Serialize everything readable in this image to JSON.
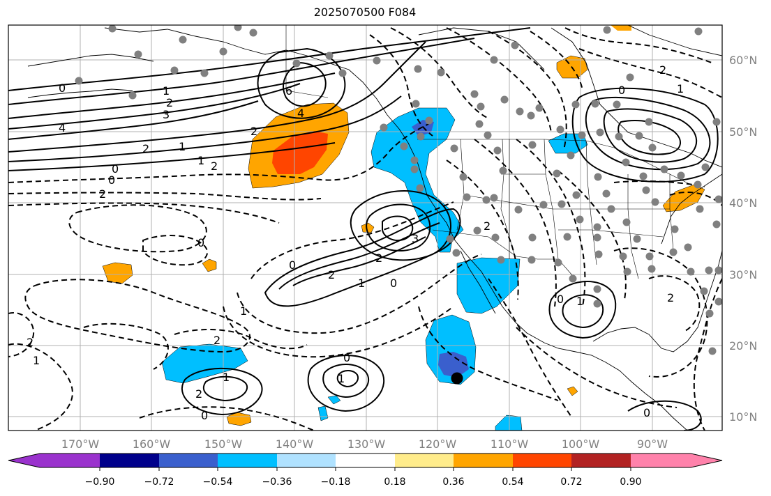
{
  "title": "2025070500 F084",
  "map": {
    "lat_labels": [
      "60°N",
      "50°N",
      "40°N",
      "30°N",
      "20°N",
      "10°N"
    ],
    "lon_labels": [
      "170°W",
      "160°W",
      "150°W",
      "140°W",
      "130°W",
      "120°W",
      "110°W",
      "100°W",
      "90°W"
    ],
    "contour_labels": [
      "0",
      "1",
      "2",
      "3",
      "4",
      "6",
      "2",
      "1",
      "0",
      "2",
      "2",
      "1",
      "0",
      "2",
      "3",
      "4",
      "2",
      "1",
      "0",
      "2",
      "0",
      "1",
      "2",
      "1",
      "0",
      "2",
      "0",
      "1",
      "2",
      "0",
      "2",
      "1",
      "2",
      "0",
      "1",
      "0",
      "2",
      "1",
      "0"
    ],
    "colors": {
      "grid": "#b0b0b0",
      "coast": "#000000",
      "dots": "#808080",
      "marker": "#000000"
    }
  },
  "colorbar": {
    "ticks": [
      "−0.90",
      "−0.72",
      "−0.54",
      "−0.36",
      "−0.18",
      "0.18",
      "0.36",
      "0.54",
      "0.72",
      "0.90"
    ],
    "colors": [
      "#9a32cd",
      "#00008b",
      "#3a5fcd",
      "#00bfff",
      "#b0e2ff",
      "#ffffff",
      "#ffec8b",
      "#ffa500",
      "#ff4500",
      "#b22222",
      "#ff82ab"
    ]
  }
}
